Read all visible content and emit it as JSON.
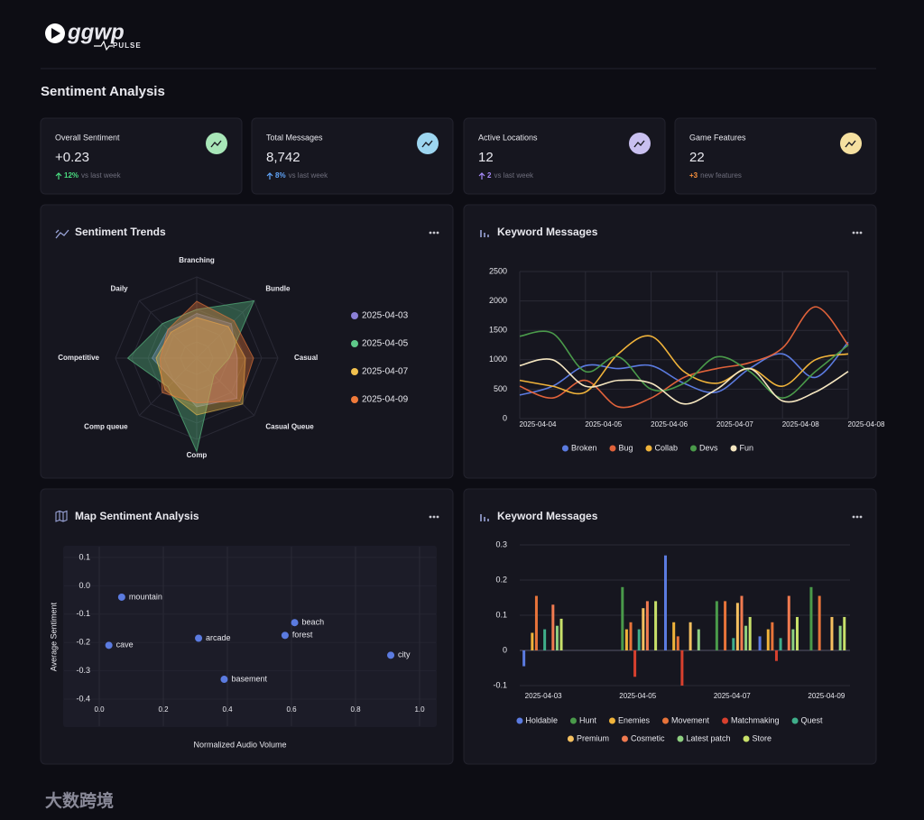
{
  "header": {
    "logo": "ggwp",
    "logo_sub": "PULSE"
  },
  "page_title": "Sentiment Analysis",
  "stats": [
    {
      "label": "Overall Sentiment",
      "value": "+0.23",
      "change": "12%",
      "note": "vs last week",
      "icon_color": "#a8e6b8",
      "change_color": "#4ade80"
    },
    {
      "label": "Total Messages",
      "value": "8,742",
      "change": "8%",
      "note": "vs last week",
      "icon_color": "#9dd6f0",
      "change_color": "#60a5fa"
    },
    {
      "label": "Active Locations",
      "value": "12",
      "change": "2",
      "note": "vs last week",
      "icon_color": "#c9c0f0",
      "change_color": "#a78bfa"
    },
    {
      "label": "Game Features",
      "value": "22",
      "change": "+3",
      "note": "new features",
      "icon_color": "#f5e0a0",
      "change_color": "#fb923c"
    }
  ],
  "charts": [
    {
      "type": "radar",
      "title": "Sentiment Trends",
      "axes": [
        "Branching",
        "Bundle",
        "Casual",
        "Casual Queue",
        "Comp",
        "Comp queue",
        "Competitive",
        "Daily"
      ],
      "rlim": [
        0,
        100
      ],
      "series": [
        {
          "name": "2025-04-03",
          "color": "#8b7fd6",
          "values": [
            55,
            60,
            50,
            70,
            60,
            40,
            55,
            50
          ]
        },
        {
          "name": "2025-04-05",
          "color": "#5fc98a",
          "values": [
            60,
            100,
            40,
            30,
            115,
            50,
            85,
            60
          ]
        },
        {
          "name": "2025-04-07",
          "color": "#f2c14e",
          "values": [
            50,
            55,
            60,
            80,
            70,
            55,
            50,
            45
          ]
        },
        {
          "name": "2025-04-09",
          "color": "#f07a3a",
          "values": [
            70,
            65,
            70,
            75,
            55,
            60,
            45,
            50
          ]
        }
      ]
    },
    {
      "type": "line",
      "title": "Keyword Messages",
      "categories": [
        "2025-04-04",
        null,
        "2025-04-05",
        null,
        "2025-04-06",
        null,
        "2025-04-07",
        null,
        "2025-04-08",
        null,
        "2025-04-08"
      ],
      "ylim": [
        0,
        2500
      ],
      "yticks": [
        0,
        500,
        1000,
        1500,
        2000,
        2500
      ],
      "series": [
        {
          "name": "Broken",
          "color": "#5b7be0",
          "values": [
            400,
            550,
            900,
            850,
            900,
            600,
            450,
            850,
            1100,
            700,
            1300
          ]
        },
        {
          "name": "Bug",
          "color": "#e0623a",
          "values": [
            550,
            350,
            650,
            200,
            350,
            700,
            850,
            950,
            1200,
            1900,
            1250
          ]
        },
        {
          "name": "Collab",
          "color": "#f0b33a",
          "values": [
            650,
            550,
            450,
            1100,
            1400,
            800,
            600,
            850,
            550,
            1000,
            1100
          ]
        },
        {
          "name": "Devs",
          "color": "#4a9a4a",
          "values": [
            1400,
            1450,
            800,
            1050,
            500,
            600,
            1050,
            800,
            350,
            800,
            1250
          ]
        },
        {
          "name": "Fun",
          "color": "#f5e6c0",
          "values": [
            900,
            1000,
            550,
            650,
            600,
            250,
            500,
            850,
            300,
            450,
            800
          ]
        }
      ]
    },
    {
      "type": "scatter",
      "title": "Map Sentiment Analysis",
      "xlabel": "Normalized Audio Volume",
      "ylabel": "Average Sentiment",
      "color": "#5b7be0",
      "xlim": [
        0,
        1
      ],
      "ylim": [
        -0.4,
        0.1
      ],
      "xticks": [
        {
          "value": 0,
          "label": "0.0"
        },
        0.2,
        0.4,
        0.6,
        0.8,
        {
          "value": 1,
          "label": "1.0"
        }
      ],
      "yticks": [
        0.1,
        {
          "value": 0,
          "label": "0.0"
        },
        -0.1,
        -0.2,
        -0.3,
        -0.4
      ],
      "points": [
        {
          "label": "mountain",
          "x": 0.07,
          "y": -0.04
        },
        {
          "label": "cave",
          "x": 0.03,
          "y": -0.21
        },
        {
          "label": "arcade",
          "x": 0.31,
          "y": -0.185
        },
        {
          "label": "basement",
          "x": 0.39,
          "y": -0.33
        },
        {
          "label": "beach",
          "x": 0.61,
          "y": -0.13
        },
        {
          "label": "forest",
          "x": 0.58,
          "y": -0.175
        },
        {
          "label": "city",
          "x": 0.91,
          "y": -0.245
        }
      ]
    },
    {
      "type": "bar",
      "title": "Keyword Messages",
      "categories": [
        "2025-04-03",
        null,
        "2025-04-05",
        null,
        "2025-04-07",
        null,
        "2025-04-09"
      ],
      "ylim": [
        -0.1,
        0.3
      ],
      "yticks": [
        -0.1,
        0,
        0.1,
        0.2,
        0.3
      ],
      "series": [
        {
          "name": "Holdable",
          "color": "#5b7be0",
          "values": [
            -0.045,
            null,
            null,
            0.27,
            null,
            0.04,
            null
          ]
        },
        {
          "name": "Hunt",
          "color": "#4a9a4a",
          "values": [
            null,
            null,
            0.18,
            null,
            0.14,
            null,
            0.18
          ]
        },
        {
          "name": "Enemies",
          "color": "#f0b33a",
          "values": [
            0.05,
            null,
            0.06,
            0.08,
            null,
            0.06,
            null
          ]
        },
        {
          "name": "Movement",
          "color": "#e8743a",
          "values": [
            0.155,
            null,
            0.08,
            0.04,
            0.14,
            0.08,
            0.155
          ]
        },
        {
          "name": "Matchmaking",
          "color": "#d8402e",
          "values": [
            null,
            null,
            -0.075,
            -0.1,
            null,
            -0.03,
            null
          ]
        },
        {
          "name": "Quest",
          "color": "#3fae8a",
          "values": [
            0.06,
            null,
            0.06,
            null,
            0.035,
            0.035,
            null
          ]
        },
        {
          "name": "Premium",
          "color": "#f5c060",
          "values": [
            null,
            null,
            0.12,
            0.08,
            0.135,
            null,
            0.095
          ]
        },
        {
          "name": "Cosmetic",
          "color": "#f07a50",
          "values": [
            0.13,
            null,
            0.14,
            null,
            0.155,
            0.155,
            null
          ]
        },
        {
          "name": "Latest patch",
          "color": "#8ed081",
          "values": [
            0.07,
            null,
            null,
            0.06,
            0.07,
            0.06,
            0.07
          ]
        },
        {
          "name": "Store",
          "color": "#c8e06a",
          "values": [
            0.09,
            null,
            0.14,
            null,
            0.095,
            0.095,
            0.095
          ]
        }
      ]
    }
  ],
  "watermark": "大数跨境"
}
